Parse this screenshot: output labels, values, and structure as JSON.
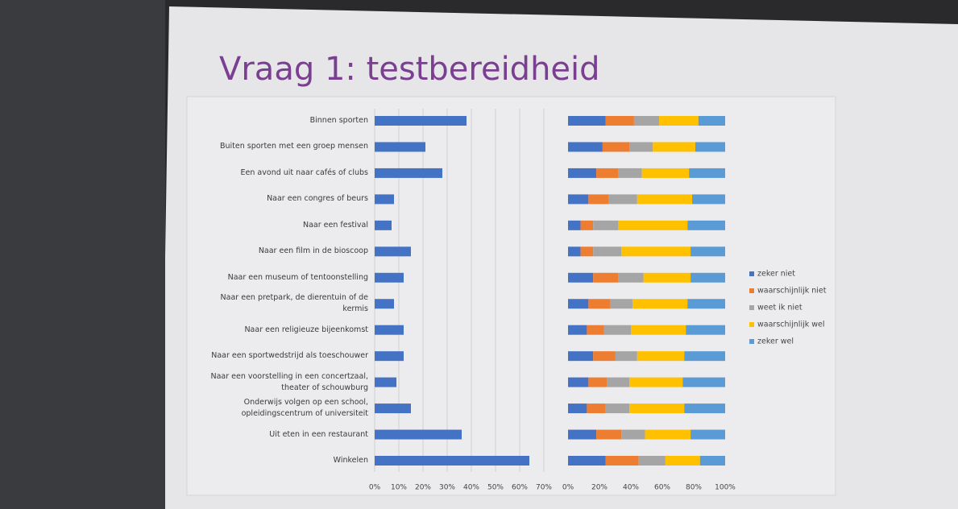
{
  "chart_data": [
    {
      "type": "hbar",
      "title": "Vraag 1: testbereidheid",
      "categories": [
        "Binnen sporten",
        "Buiten sporten met een groep mensen",
        "Een avond uit naar cafés of clubs",
        "Naar een congres of beurs",
        "Naar een festival",
        "Naar een film in de bioscoop",
        "Naar een museum of tentoonstelling",
        "Naar een pretpark, de dierentuin of de kermis",
        "Naar een religieuze bijeenkomst",
        "Naar een sportwedstrijd als toeschouwer",
        "Naar een voorstelling in een concertzaal, theater of schouwburg",
        "Onderwijs volgen op een school, opleidingscentrum of universiteit",
        "Uit eten in een restaurant",
        "Winkelen"
      ],
      "values": [
        38,
        21,
        28,
        8,
        7,
        15,
        12,
        8,
        12,
        12,
        9,
        15,
        36,
        64
      ],
      "color": "#4472c4",
      "xlim": [
        0,
        70
      ],
      "xticks": [
        {
          "value": 0,
          "label": "0%"
        },
        {
          "value": 10,
          "label": "10%"
        },
        {
          "value": 20,
          "label": "20%"
        },
        {
          "value": 30,
          "label": "30%"
        },
        {
          "value": 40,
          "label": "40%"
        },
        {
          "value": 50,
          "label": "50%"
        },
        {
          "value": 60,
          "label": "60%"
        },
        {
          "value": 70,
          "label": "70%"
        }
      ],
      "grid": true
    },
    {
      "type": "stacked-hbar",
      "series": [
        {
          "name": "zeker niet",
          "color": "#4472c4",
          "values": [
            24,
            22,
            18,
            13,
            8,
            8,
            16,
            13,
            12,
            16,
            13,
            12,
            18,
            24
          ]
        },
        {
          "name": "waarschijnlijk niet",
          "color": "#ed7d31",
          "values": [
            18,
            17,
            14,
            13,
            8,
            8,
            16,
            14,
            11,
            14,
            12,
            12,
            16,
            21
          ]
        },
        {
          "name": "weet ik niet",
          "color": "#a5a5a5",
          "values": [
            16,
            15,
            15,
            18,
            16,
            18,
            16,
            14,
            17,
            14,
            14,
            15,
            15,
            17
          ]
        },
        {
          "name": "waarschijnlijk wel",
          "color": "#ffc000",
          "values": [
            25,
            27,
            30,
            35,
            44,
            44,
            30,
            35,
            35,
            30,
            34,
            35,
            29,
            22
          ]
        },
        {
          "name": "zeker wel",
          "color": "#5b9bd5",
          "values": [
            17,
            19,
            23,
            21,
            24,
            22,
            22,
            24,
            25,
            26,
            27,
            26,
            22,
            16
          ]
        }
      ],
      "xlim": [
        0,
        100
      ],
      "xticks": [
        {
          "value": 0,
          "label": "0%"
        },
        {
          "value": 20,
          "label": "20%"
        },
        {
          "value": 40,
          "label": "40%"
        },
        {
          "value": 60,
          "label": "60%"
        },
        {
          "value": 80,
          "label": "80%"
        },
        {
          "value": 100,
          "label": "100%"
        }
      ],
      "legend": "right"
    }
  ]
}
